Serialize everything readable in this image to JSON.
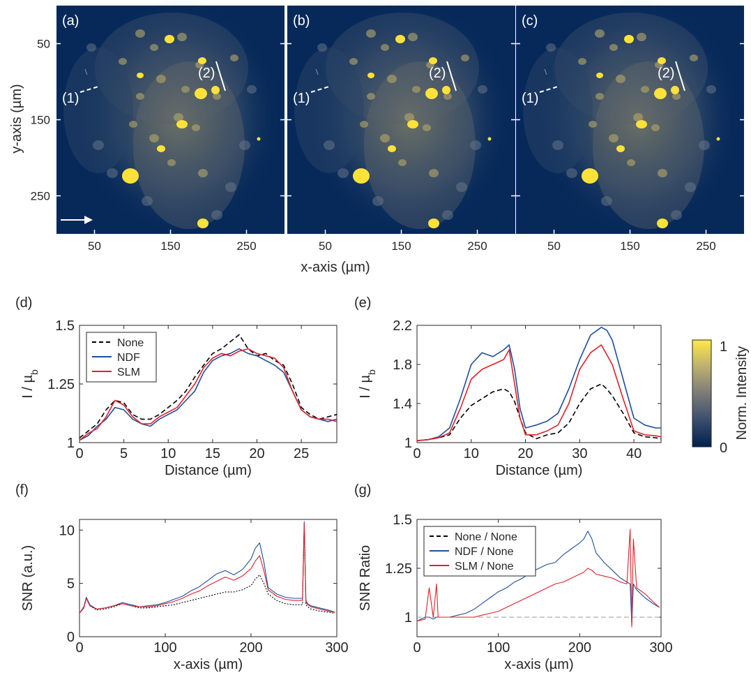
{
  "images": {
    "panels": [
      "(a)",
      "(b)",
      "(c)"
    ],
    "profile_marks": [
      "(1)",
      "(2)"
    ],
    "x_axis": {
      "label": "x-axis (µm)",
      "ticks": [
        50,
        150,
        250
      ]
    },
    "y_axis": {
      "label": "y-axis (µm)",
      "ticks": [
        50,
        150,
        250
      ]
    },
    "colorbar": {
      "label": "Norm. Intensity",
      "min": "0",
      "max": "1",
      "colormap": [
        "#00204c",
        "#3b4d6e",
        "#7b7b78",
        "#bcaf6f",
        "#ffe945"
      ]
    }
  },
  "colors": {
    "None": "#000000",
    "NDF": "#1f4e9c",
    "SLM": "#e0202a",
    "ref": "#9a9a9a"
  },
  "chart_data": [
    {
      "panel": "(d)",
      "type": "line",
      "xlabel": "Distance (µm)",
      "ylabel": "I / µb",
      "xlim": [
        0,
        29
      ],
      "ylim": [
        1,
        1.5
      ],
      "xticks": [
        0,
        5,
        10,
        15,
        20,
        25
      ],
      "yticks": [
        1,
        1.25,
        1.5
      ],
      "ytick_labels": [
        "1",
        "1.25",
        "1.5"
      ],
      "legend": "top-left",
      "x": [
        0,
        1,
        2,
        3,
        4,
        5,
        6,
        7,
        8,
        9,
        10,
        11,
        12,
        13,
        14,
        15,
        16,
        17,
        18,
        19,
        20,
        21,
        22,
        23,
        24,
        25,
        26,
        27,
        28,
        29
      ],
      "series": [
        {
          "name": "None",
          "style": "dashed",
          "values": [
            1.02,
            1.05,
            1.08,
            1.14,
            1.18,
            1.17,
            1.12,
            1.1,
            1.1,
            1.12,
            1.15,
            1.18,
            1.22,
            1.28,
            1.33,
            1.38,
            1.4,
            1.43,
            1.46,
            1.4,
            1.37,
            1.38,
            1.35,
            1.33,
            1.25,
            1.15,
            1.12,
            1.1,
            1.11,
            1.12
          ]
        },
        {
          "name": "NDF",
          "style": "solid",
          "values": [
            1.01,
            1.03,
            1.07,
            1.1,
            1.15,
            1.14,
            1.1,
            1.08,
            1.07,
            1.1,
            1.12,
            1.14,
            1.18,
            1.22,
            1.3,
            1.35,
            1.37,
            1.38,
            1.4,
            1.38,
            1.37,
            1.35,
            1.33,
            1.3,
            1.22,
            1.14,
            1.11,
            1.1,
            1.09,
            1.1
          ]
        },
        {
          "name": "SLM",
          "style": "solid",
          "values": [
            1.01,
            1.04,
            1.06,
            1.11,
            1.18,
            1.16,
            1.11,
            1.08,
            1.08,
            1.11,
            1.13,
            1.15,
            1.2,
            1.25,
            1.32,
            1.36,
            1.38,
            1.37,
            1.39,
            1.4,
            1.38,
            1.37,
            1.36,
            1.32,
            1.22,
            1.14,
            1.11,
            1.1,
            1.1,
            1.09
          ]
        }
      ]
    },
    {
      "panel": "(e)",
      "type": "line",
      "xlabel": "Distance (µm)",
      "ylabel": "I / µb",
      "xlim": [
        0,
        45
      ],
      "ylim": [
        1,
        2.2
      ],
      "xticks": [
        0,
        10,
        20,
        30,
        40
      ],
      "yticks": [
        1,
        1.4,
        1.8,
        2.2
      ],
      "ytick_labels": [
        "1",
        "1.4",
        "1.8",
        "2.2"
      ],
      "x": [
        0,
        2,
        4,
        6,
        8,
        10,
        12,
        14,
        16,
        17,
        18,
        19,
        20,
        22,
        24,
        26,
        28,
        30,
        32,
        34,
        35,
        36,
        38,
        40,
        42,
        44,
        45
      ],
      "series": [
        {
          "name": "None",
          "style": "dashed",
          "values": [
            1.02,
            1.03,
            1.05,
            1.08,
            1.25,
            1.38,
            1.45,
            1.52,
            1.55,
            1.52,
            1.42,
            1.25,
            1.1,
            1.04,
            1.08,
            1.1,
            1.2,
            1.4,
            1.55,
            1.6,
            1.55,
            1.48,
            1.3,
            1.1,
            1.06,
            1.05,
            1.04
          ]
        },
        {
          "name": "NDF",
          "style": "solid",
          "values": [
            1.02,
            1.03,
            1.06,
            1.15,
            1.45,
            1.8,
            1.92,
            1.88,
            1.95,
            2.0,
            1.75,
            1.35,
            1.15,
            1.18,
            1.22,
            1.3,
            1.55,
            1.85,
            2.1,
            2.18,
            2.15,
            2.05,
            1.65,
            1.25,
            1.18,
            1.15,
            1.15
          ]
        },
        {
          "name": "SLM",
          "style": "solid",
          "values": [
            1.02,
            1.03,
            1.05,
            1.1,
            1.35,
            1.65,
            1.75,
            1.8,
            1.85,
            1.95,
            1.6,
            1.25,
            1.08,
            1.08,
            1.12,
            1.18,
            1.4,
            1.75,
            1.92,
            2.0,
            1.9,
            1.8,
            1.45,
            1.12,
            1.08,
            1.07,
            1.06
          ]
        }
      ]
    },
    {
      "panel": "(f)",
      "type": "line",
      "xlabel": "x-axis (µm)",
      "ylabel": "SNR (a.u.)",
      "xlim": [
        0,
        300
      ],
      "ylim": [
        0,
        11
      ],
      "xticks": [
        0,
        100,
        200,
        300
      ],
      "yticks": [
        0,
        5,
        10
      ],
      "ytick_labels": [
        "0",
        "5",
        "10"
      ],
      "x": [
        0,
        5,
        8,
        12,
        20,
        30,
        40,
        50,
        60,
        70,
        80,
        90,
        100,
        110,
        120,
        130,
        140,
        150,
        160,
        170,
        180,
        190,
        200,
        205,
        210,
        215,
        220,
        230,
        240,
        250,
        260,
        262,
        264,
        266,
        270,
        280,
        290,
        298
      ],
      "series": [
        {
          "name": "None",
          "style": "dotted",
          "values": [
            2.2,
            2.7,
            3.6,
            2.9,
            2.5,
            2.6,
            2.8,
            3.1,
            2.9,
            2.7,
            2.7,
            2.8,
            2.9,
            3.0,
            3.2,
            3.4,
            3.6,
            3.8,
            4.0,
            4.2,
            4.2,
            4.4,
            4.8,
            5.4,
            5.8,
            5.0,
            4.0,
            3.4,
            3.1,
            3.0,
            3.0,
            10.5,
            3.0,
            2.8,
            2.6,
            2.4,
            2.3,
            2.2
          ]
        },
        {
          "name": "NDF",
          "style": "solid",
          "values": [
            2.2,
            2.8,
            3.7,
            3.0,
            2.6,
            2.7,
            2.9,
            3.2,
            3.0,
            2.8,
            2.9,
            3.0,
            3.2,
            3.5,
            3.8,
            4.3,
            4.7,
            5.3,
            5.9,
            6.2,
            5.8,
            6.3,
            7.3,
            8.3,
            8.8,
            7.0,
            4.6,
            4.0,
            3.7,
            3.6,
            3.6,
            10.8,
            3.4,
            3.1,
            2.9,
            2.7,
            2.5,
            2.3
          ]
        },
        {
          "name": "SLM",
          "style": "solid",
          "values": [
            2.2,
            2.7,
            3.6,
            2.9,
            2.6,
            2.7,
            2.9,
            3.1,
            2.9,
            2.8,
            2.8,
            2.9,
            3.1,
            3.3,
            3.6,
            4.0,
            4.3,
            4.8,
            5.2,
            5.6,
            5.3,
            5.7,
            6.4,
            7.1,
            7.6,
            6.2,
            4.4,
            3.8,
            3.5,
            3.4,
            3.4,
            10.6,
            3.3,
            3.0,
            2.8,
            2.6,
            2.4,
            2.3
          ]
        }
      ]
    },
    {
      "panel": "(g)",
      "type": "line",
      "xlabel": "x-axis (µm)",
      "ylabel": "SNR Ratio",
      "xlim": [
        0,
        300
      ],
      "ylim": [
        0.9,
        1.5
      ],
      "xticks": [
        0,
        100,
        200,
        300
      ],
      "yticks": [
        1,
        1.25,
        1.5
      ],
      "ytick_labels": [
        "1",
        "1.25",
        "1.5"
      ],
      "legend": "top-left",
      "x": [
        0,
        10,
        15,
        20,
        24,
        26,
        30,
        40,
        50,
        60,
        70,
        80,
        90,
        100,
        110,
        120,
        130,
        140,
        150,
        160,
        170,
        180,
        190,
        200,
        205,
        210,
        215,
        220,
        230,
        240,
        250,
        258,
        262,
        264,
        266,
        270,
        280,
        290,
        298
      ],
      "series": [
        {
          "name": "None / None",
          "style": "dashed",
          "values": [
            1,
            1,
            1,
            1,
            1,
            1,
            1,
            1,
            1,
            1,
            1,
            1,
            1,
            1,
            1,
            1,
            1,
            1,
            1,
            1,
            1,
            1,
            1,
            1,
            1,
            1,
            1,
            1,
            1,
            1,
            1,
            1,
            1,
            1,
            1,
            1,
            1,
            1,
            1
          ]
        },
        {
          "name": "NDF / None",
          "style": "solid",
          "values": [
            0.98,
            1.0,
            1.0,
            0.99,
            1.0,
            1.0,
            1.0,
            1.0,
            1.01,
            1.02,
            1.04,
            1.07,
            1.1,
            1.13,
            1.15,
            1.18,
            1.2,
            1.23,
            1.25,
            1.27,
            1.28,
            1.32,
            1.35,
            1.38,
            1.4,
            1.44,
            1.4,
            1.33,
            1.28,
            1.24,
            1.2,
            1.18,
            1.17,
            0.96,
            1.17,
            1.14,
            1.1,
            1.07,
            1.05
          ]
        },
        {
          "name": "SLM / None",
          "style": "solid",
          "values": [
            0.98,
            0.99,
            1.15,
            1.0,
            1.17,
            1.0,
            1.0,
            1.0,
            1.0,
            1.0,
            1.0,
            1.01,
            1.02,
            1.03,
            1.05,
            1.07,
            1.09,
            1.11,
            1.13,
            1.15,
            1.17,
            1.18,
            1.2,
            1.22,
            1.23,
            1.25,
            1.24,
            1.22,
            1.21,
            1.2,
            1.18,
            1.17,
            1.45,
            0.95,
            1.4,
            1.15,
            1.12,
            1.08,
            1.05
          ]
        }
      ]
    }
  ]
}
